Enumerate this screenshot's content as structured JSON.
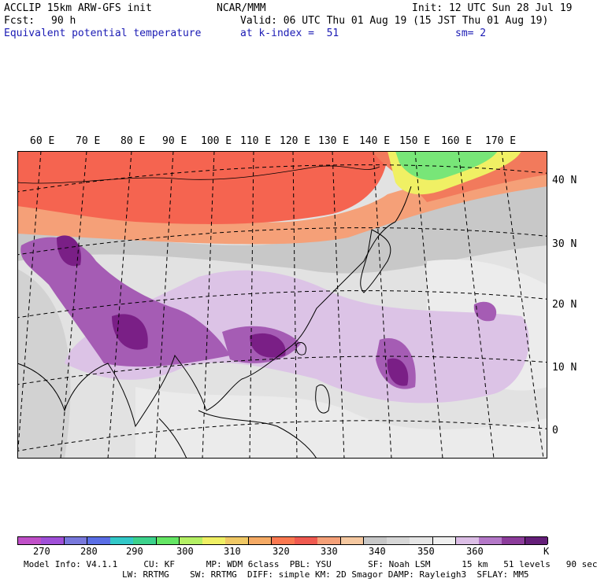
{
  "header": {
    "model": "ACCLIP 15km ARW-GFS init",
    "org": "NCAR/MMM",
    "init": "Init: 12 UTC Sun 28 Jul 19",
    "fcst_label": "Fcst:",
    "fcst_value": "90 h",
    "valid": "Valid: 06 UTC Thu 01 Aug 19 (15 JST Thu 01 Aug 19)",
    "field": "Equivalent potential temperature",
    "level": "at k-index =  51",
    "smoothing": "sm= 2"
  },
  "map": {
    "lon_labels": [
      "60 E",
      "70 E",
      "80 E",
      "90 E",
      "100 E",
      "110 E",
      "120 E",
      "130 E",
      "140 E",
      "150 E",
      "160 E",
      "170 E"
    ],
    "lat_labels": [
      "40 N",
      "30 N",
      "20 N",
      "10 N",
      "0"
    ]
  },
  "colorbar": {
    "colors": [
      "#c050c8",
      "#a050d8",
      "#7878dc",
      "#5a6ee6",
      "#32c8c8",
      "#3cd28c",
      "#64e664",
      "#b4f064",
      "#f0f064",
      "#f0c864",
      "#f5aa64",
      "#fa7850",
      "#f05a50",
      "#f5a078",
      "#f5c8a0",
      "#c8c8c8",
      "#d7d7d7",
      "#e6e6e6",
      "#f0f0f0",
      "#dcbee6",
      "#b478c8",
      "#8c3c9b",
      "#641e78"
    ],
    "labels": [
      "270",
      "280",
      "290",
      "300",
      "310",
      "320",
      "330",
      "340",
      "350",
      "360"
    ],
    "unit": "K"
  },
  "footer": {
    "line1": "Model Info: V4.1.1     CU: KF      MP: WDM 6class  PBL: YSU       SF: Noah LSM      15 km   51 levels   90 sec",
    "line2": "LW: RRTMG    SW: RRTMG  DIFF: simple KM: 2D Smagor DAMP: Rayleigh3  SFLAY: MM5"
  },
  "legend_colors": {
    "purple_dark": "#7a1f86",
    "purple_mid": "#a55cb4",
    "purple_light": "#dcc3e6",
    "gray_dark": "#b9b9b9",
    "gray_light": "#e6e6e6",
    "red": "#f56450",
    "orange": "#f5a078",
    "green": "#78e678",
    "yellow": "#f0f064"
  }
}
